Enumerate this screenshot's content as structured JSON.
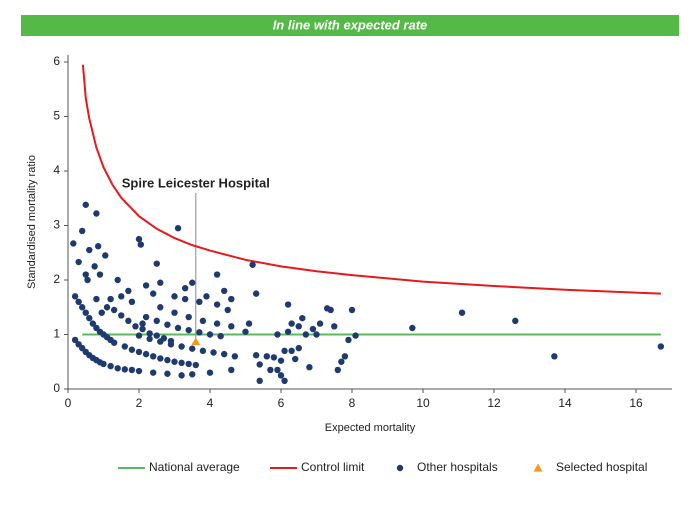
{
  "header": {
    "title": "In line with expected rate"
  },
  "chart_data": {
    "type": "scatter",
    "x_label": "Expected mortality",
    "y_label": "Standardised mortality ratio",
    "annotation": "Spire Leicester Hospital",
    "xlim": [
      0,
      17
    ],
    "ylim": [
      0,
      6
    ],
    "xticks": [
      0,
      2,
      4,
      6,
      8,
      10,
      12,
      14,
      16
    ],
    "yticks": [
      0,
      1,
      2,
      3,
      4,
      5,
      6
    ],
    "grid": false,
    "series": [
      {
        "name": "National average",
        "color": "#5cb85c",
        "mark": "line",
        "x": [
          0.4,
          16.7
        ],
        "values": [
          1,
          1
        ]
      },
      {
        "name": "Control limit",
        "color": "#e41a1c",
        "mark": "line",
        "x": [
          0.42,
          0.5,
          0.6,
          0.8,
          1,
          1.25,
          1.5,
          2,
          2.5,
          3,
          3.5,
          4,
          5,
          6,
          7,
          8,
          10,
          12,
          14,
          16.7
        ],
        "values": [
          5.95,
          5.34,
          4.96,
          4.43,
          4.07,
          3.75,
          3.51,
          3.17,
          2.94,
          2.77,
          2.64,
          2.54,
          2.37,
          2.25,
          2.16,
          2.09,
          1.97,
          1.89,
          1.82,
          1.75
        ]
      },
      {
        "name": "Other hospitals",
        "color": "#1f3a6e",
        "mark": "point",
        "x": [
          0.15,
          0.3,
          0.4,
          0.5,
          0.6,
          0.8,
          0.85,
          0.75,
          0.9,
          1.05,
          0.5,
          0.55,
          0.2,
          0.3,
          0.4,
          0.5,
          0.6,
          0.7,
          0.8,
          0.9,
          1.0,
          1.1,
          1.2,
          1.3,
          0.2,
          0.3,
          0.4,
          0.5,
          0.6,
          0.7,
          0.8,
          0.9,
          1.0,
          1.2,
          1.4,
          1.6,
          1.3,
          1.5,
          1.7,
          1.9,
          2.1,
          2.3,
          2.5,
          2.7,
          2.9,
          1.6,
          1.8,
          2.0,
          2.2,
          2.4,
          2.6,
          2.8,
          3.0,
          3.2,
          3.4,
          3.6,
          2.0,
          2.3,
          2.6,
          2.9,
          3.2,
          3.5,
          3.8,
          4.1,
          4.4,
          4.7,
          2.2,
          2.5,
          2.8,
          3.1,
          3.4,
          3.7,
          4.0,
          4.3,
          2.6,
          3.0,
          3.4,
          3.8,
          4.2,
          4.6,
          2.0,
          2.4,
          2.8,
          3.2,
          3.5,
          4.0,
          4.6,
          1.8,
          1.5,
          1.7,
          2.0,
          2.05,
          2.5,
          3.1,
          2.6,
          3.0,
          3.3,
          3.5,
          3.7,
          3.9,
          4.2,
          4.4,
          4.6,
          4.2,
          4.5,
          3.3,
          1.4,
          1.2,
          1.1,
          0.95,
          0.8,
          2.2,
          2.4,
          1.8,
          2.1,
          5.2,
          5.3,
          5.1,
          5.0,
          5.3,
          5.4,
          5.4,
          5.6,
          5.8,
          5.9,
          5.7,
          6.0,
          6.0,
          6.1,
          6.1,
          6.2,
          6.2,
          6.3,
          6.4,
          6.5,
          6.5,
          6.6,
          6.7,
          6.8,
          6.9,
          7.0,
          7.1,
          7.3,
          7.4,
          7.5,
          7.6,
          7.7,
          7.8,
          7.9,
          8.0,
          8.1,
          5.9,
          6.3,
          9.7,
          11.1,
          12.6,
          13.7,
          16.7
        ],
        "values": [
          2.67,
          2.33,
          2.9,
          3.38,
          2.55,
          3.22,
          2.62,
          2.25,
          2.1,
          2.45,
          2.1,
          2.0,
          1.7,
          1.6,
          1.5,
          1.4,
          1.3,
          1.2,
          1.12,
          1.05,
          1.0,
          0.95,
          0.9,
          0.85,
          0.9,
          0.82,
          0.75,
          0.68,
          0.62,
          0.57,
          0.53,
          0.49,
          0.46,
          0.42,
          0.38,
          0.36,
          1.45,
          1.35,
          1.25,
          1.15,
          1.1,
          1.02,
          0.98,
          0.93,
          0.88,
          0.78,
          0.72,
          0.68,
          0.64,
          0.6,
          0.56,
          0.53,
          0.5,
          0.48,
          0.46,
          0.44,
          0.98,
          0.92,
          0.87,
          0.82,
          0.78,
          0.74,
          0.7,
          0.67,
          0.64,
          0.6,
          1.32,
          1.25,
          1.18,
          1.12,
          1.08,
          1.04,
          1.0,
          0.97,
          1.5,
          1.4,
          1.32,
          1.25,
          1.2,
          1.15,
          0.33,
          0.3,
          0.28,
          0.25,
          0.27,
          0.3,
          0.35,
          0.35,
          1.7,
          1.8,
          2.75,
          2.65,
          2.3,
          2.95,
          1.95,
          1.7,
          1.85,
          1.95,
          1.6,
          1.7,
          2.1,
          1.8,
          1.65,
          1.55,
          1.45,
          1.65,
          2.0,
          1.65,
          1.5,
          1.4,
          1.65,
          1.9,
          1.75,
          1.6,
          1.2,
          2.28,
          1.75,
          1.2,
          1.05,
          0.62,
          0.45,
          0.15,
          0.6,
          0.58,
          0.35,
          0.35,
          0.52,
          0.25,
          0.15,
          0.7,
          1.05,
          1.55,
          0.7,
          0.55,
          0.75,
          1.15,
          1.3,
          1.0,
          0.4,
          1.1,
          1.0,
          1.2,
          1.48,
          1.45,
          1.15,
          0.35,
          0.5,
          0.6,
          0.9,
          1.45,
          0.98,
          1.0,
          1.2,
          1.12,
          1.4,
          1.25,
          0.6,
          0.78
        ]
      },
      {
        "name": "Selected hospital",
        "color": "#f39a1e",
        "mark": "triangle",
        "x": [
          3.6
        ],
        "values": [
          0.87
        ]
      }
    ]
  }
}
